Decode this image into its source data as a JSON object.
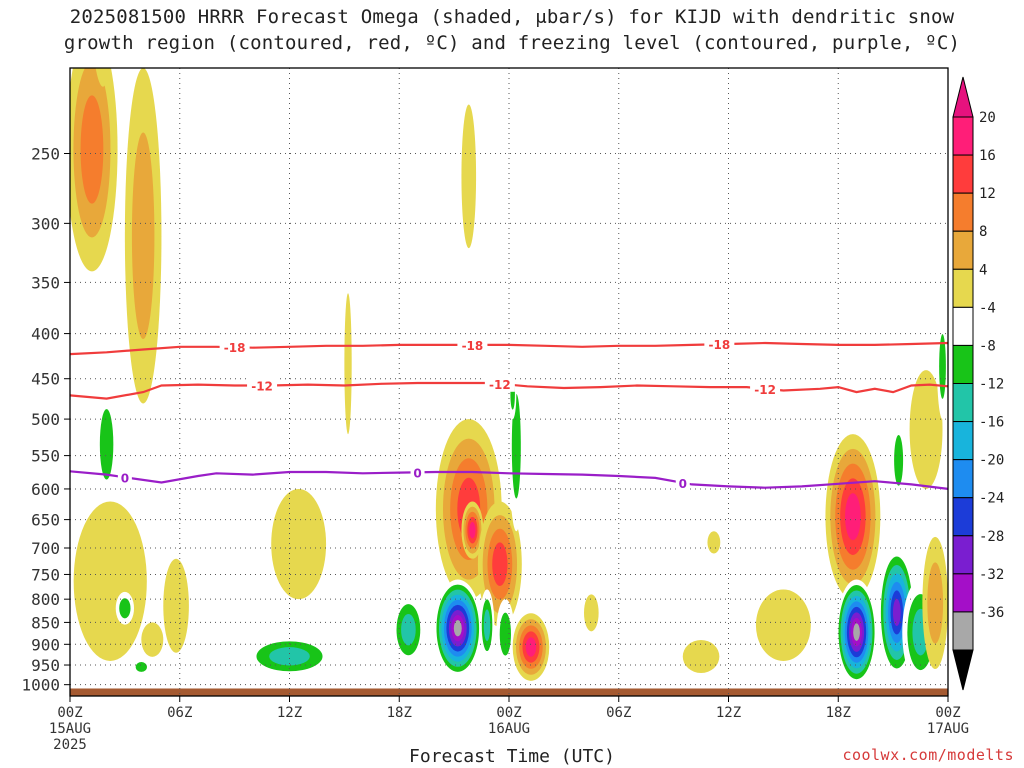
{
  "header": {
    "title_line1": "2025081500 HRRR Forecast Omega (shaded, μbar/s) for KIJD with dendritic snow",
    "title_line2": "growth region (contoured, red, ºC) and freezing level (contoured, purple, ºC)"
  },
  "footer": {
    "xtitle": "Forecast Time (UTC)",
    "credit": "coolwx.com/modelts"
  },
  "chart_data": {
    "type": "heatmap",
    "title": "2025081500 HRRR Forecast Omega (shaded, μbar/s) for KIJD with dendritic snow growth region (contoured, red, ºC) and freezing level (contoured, purple, ºC)",
    "xlabel": "Forecast Time (UTC)",
    "ylabel": "",
    "x_range_hours": [
      0,
      48
    ],
    "y_axis": "pressure (mb), inverted",
    "ylim": [
      1030,
      200
    ],
    "y_ticks": [
      250,
      300,
      350,
      400,
      450,
      500,
      550,
      600,
      650,
      700,
      750,
      800,
      850,
      900,
      950,
      1000
    ],
    "x_ticks": [
      {
        "hour": 0,
        "label": "00Z",
        "sub": "15AUG",
        "sub2": "2025"
      },
      {
        "hour": 6,
        "label": "06Z",
        "sub": "",
        "sub2": ""
      },
      {
        "hour": 12,
        "label": "12Z",
        "sub": "",
        "sub2": ""
      },
      {
        "hour": 18,
        "label": "18Z",
        "sub": "",
        "sub2": ""
      },
      {
        "hour": 24,
        "label": "00Z",
        "sub": "16AUG",
        "sub2": ""
      },
      {
        "hour": 30,
        "label": "06Z",
        "sub": "",
        "sub2": ""
      },
      {
        "hour": 36,
        "label": "12Z",
        "sub": "",
        "sub2": ""
      },
      {
        "hour": 42,
        "label": "18Z",
        "sub": "",
        "sub2": ""
      },
      {
        "hour": 48,
        "label": "00Z",
        "sub": "17AUG",
        "sub2": ""
      }
    ],
    "grid": true,
    "colorbar": {
      "position": "right",
      "levels": [
        {
          "label": "20",
          "color": "#ff1e78"
        },
        {
          "label": "16",
          "color": "#ff3c3c"
        },
        {
          "label": "12",
          "color": "#f57d2d"
        },
        {
          "label": "8",
          "color": "#e8a83a"
        },
        {
          "label": "4",
          "color": "#e6d84e"
        },
        {
          "label": "-4",
          "color": "#ffffff"
        },
        {
          "label": "-8",
          "color": "#18c418"
        },
        {
          "label": "-12",
          "color": "#22c5a8"
        },
        {
          "label": "-16",
          "color": "#18b4dc"
        },
        {
          "label": "-20",
          "color": "#1e8cf0"
        },
        {
          "label": "-24",
          "color": "#1c3cd8"
        },
        {
          "label": "-28",
          "color": "#7a1ed0"
        },
        {
          "label": "-32",
          "color": "#a40fc8"
        },
        {
          "label": "-36",
          "color": "#a8a8a8"
        }
      ],
      "top_arrow_color": "#e6127e",
      "bottom_arrow_color": "#000000"
    },
    "contours": [
      {
        "name": "-18",
        "color": "#f03c3c",
        "label": "-18",
        "points": [
          [
            0,
            422
          ],
          [
            2,
            420
          ],
          [
            4,
            417
          ],
          [
            6,
            414
          ],
          [
            8,
            414
          ],
          [
            10,
            415
          ],
          [
            12,
            414
          ],
          [
            14,
            413
          ],
          [
            16,
            413
          ],
          [
            18,
            412
          ],
          [
            20,
            412
          ],
          [
            22,
            412
          ],
          [
            24,
            412
          ],
          [
            26,
            413
          ],
          [
            28,
            414
          ],
          [
            30,
            413
          ],
          [
            32,
            413
          ],
          [
            34,
            412
          ],
          [
            36,
            411
          ],
          [
            38,
            410
          ],
          [
            40,
            411
          ],
          [
            42,
            412
          ],
          [
            44,
            412
          ],
          [
            46,
            411
          ],
          [
            48,
            410
          ]
        ],
        "label_hours": [
          9,
          22,
          35.5
        ]
      },
      {
        "name": "-12",
        "color": "#f03c3c",
        "label": "-12",
        "points": [
          [
            0,
            470
          ],
          [
            2,
            474
          ],
          [
            4,
            466
          ],
          [
            5,
            458
          ],
          [
            7,
            457
          ],
          [
            9,
            458
          ],
          [
            11,
            458
          ],
          [
            13,
            457
          ],
          [
            15,
            458
          ],
          [
            17,
            456
          ],
          [
            19,
            455
          ],
          [
            21,
            455
          ],
          [
            23,
            455
          ],
          [
            25,
            459
          ],
          [
            27,
            461
          ],
          [
            29,
            460
          ],
          [
            31,
            458
          ],
          [
            33,
            459
          ],
          [
            35,
            460
          ],
          [
            37,
            460
          ],
          [
            39,
            464
          ],
          [
            41,
            462
          ],
          [
            42,
            460
          ],
          [
            43,
            466
          ],
          [
            44,
            462
          ],
          [
            45,
            466
          ],
          [
            46,
            458
          ],
          [
            47,
            457
          ],
          [
            48,
            459
          ]
        ],
        "label_hours": [
          10.5,
          23.5,
          38
        ]
      },
      {
        "name": "0",
        "color": "#9a1ec8",
        "label": "0",
        "points": [
          [
            0,
            573
          ],
          [
            2,
            578
          ],
          [
            3,
            582
          ],
          [
            5,
            590
          ],
          [
            7,
            580
          ],
          [
            8,
            576
          ],
          [
            10,
            578
          ],
          [
            12,
            574
          ],
          [
            14,
            574
          ],
          [
            16,
            576
          ],
          [
            18,
            575
          ],
          [
            20,
            574
          ],
          [
            22,
            574
          ],
          [
            24,
            576
          ],
          [
            26,
            577
          ],
          [
            28,
            578
          ],
          [
            30,
            580
          ],
          [
            32,
            583
          ],
          [
            34,
            593
          ],
          [
            36,
            596
          ],
          [
            38,
            598
          ],
          [
            40,
            596
          ],
          [
            42,
            592
          ],
          [
            44,
            588
          ],
          [
            46,
            593
          ],
          [
            48,
            600
          ]
        ],
        "label_hours": [
          3,
          19,
          33.5
        ]
      }
    ],
    "surface_pressure": 1010,
    "omega_blobs": [
      {
        "t": 1.2,
        "p": 260,
        "rt": 1.4,
        "rp": 80,
        "levels": [
          4,
          8,
          12
        ]
      },
      {
        "t": 1.8,
        "p": 130,
        "rt": 1.1,
        "rp": 80,
        "levels": [
          4,
          8
        ]
      },
      {
        "t": 4.0,
        "p": 340,
        "rt": 1.0,
        "rp": 140,
        "levels": [
          4,
          8
        ]
      },
      {
        "t": 2.0,
        "p": 540,
        "rt": 0.6,
        "rp": 80,
        "levels": [
          -4,
          -8
        ]
      },
      {
        "t": 2.2,
        "p": 780,
        "rt": 2.0,
        "rp": 160,
        "levels": [
          4
        ]
      },
      {
        "t": 3.0,
        "p": 820,
        "rt": 0.5,
        "rp": 35,
        "levels": [
          -4,
          -8
        ]
      },
      {
        "t": 4.5,
        "p": 890,
        "rt": 0.6,
        "rp": 40,
        "levels": [
          4
        ]
      },
      {
        "t": 5.8,
        "p": 820,
        "rt": 0.7,
        "rp": 100,
        "levels": [
          4
        ]
      },
      {
        "t": 3.9,
        "p": 955,
        "rt": 0.5,
        "rp": 20,
        "levels": [
          -4,
          -8
        ]
      },
      {
        "t": 12.5,
        "p": 700,
        "rt": 1.5,
        "rp": 100,
        "levels": [
          4
        ]
      },
      {
        "t": 12.0,
        "p": 930,
        "rt": 2.5,
        "rp": 50,
        "levels": [
          -4,
          -8,
          -12
        ]
      },
      {
        "t": 15.2,
        "p": 440,
        "rt": 0.2,
        "rp": 80,
        "levels": [
          4
        ]
      },
      {
        "t": 21.8,
        "p": 270,
        "rt": 0.4,
        "rp": 50,
        "levels": [
          4
        ]
      },
      {
        "t": 21.8,
        "p": 650,
        "rt": 1.8,
        "rp": 150,
        "levels": [
          4,
          8,
          12,
          16
        ]
      },
      {
        "t": 22.0,
        "p": 670,
        "rt": 0.6,
        "rp": 50,
        "levels": [
          4,
          8,
          12,
          16,
          20
        ]
      },
      {
        "t": 18.5,
        "p": 870,
        "rt": 0.9,
        "rp": 80,
        "levels": [
          -4,
          -8,
          -12
        ]
      },
      {
        "t": 21.2,
        "p": 870,
        "rt": 1.3,
        "rp": 110,
        "levels": [
          -4,
          -8,
          -12,
          -16,
          -20,
          -24,
          -28,
          -32,
          -36
        ]
      },
      {
        "t": 23.5,
        "p": 740,
        "rt": 1.2,
        "rp": 120,
        "levels": [
          4,
          8,
          12,
          16
        ]
      },
      {
        "t": 22.8,
        "p": 860,
        "rt": 0.4,
        "rp": 80,
        "levels": [
          -4,
          -8,
          -12
        ]
      },
      {
        "t": 23.8,
        "p": 880,
        "rt": 0.5,
        "rp": 80,
        "levels": [
          -4,
          -8
        ]
      },
      {
        "t": 24.4,
        "p": 550,
        "rt": 0.4,
        "rp": 120,
        "levels": [
          -4,
          -8
        ]
      },
      {
        "t": 24.2,
        "p": 470,
        "rt": 0.2,
        "rp": 30,
        "levels": [
          -4,
          -8
        ]
      },
      {
        "t": 25.2,
        "p": 910,
        "rt": 1.0,
        "rp": 80,
        "levels": [
          4,
          8,
          12,
          16,
          20
        ]
      },
      {
        "t": 28.5,
        "p": 830,
        "rt": 0.4,
        "rp": 40,
        "levels": [
          4
        ]
      },
      {
        "t": 35.2,
        "p": 690,
        "rt": 0.35,
        "rp": 20,
        "levels": [
          4
        ]
      },
      {
        "t": 34.5,
        "p": 930,
        "rt": 1.0,
        "rp": 40,
        "levels": [
          4
        ]
      },
      {
        "t": 39.0,
        "p": 860,
        "rt": 1.5,
        "rp": 80,
        "levels": [
          4
        ]
      },
      {
        "t": 42.8,
        "p": 660,
        "rt": 1.5,
        "rp": 140,
        "levels": [
          4,
          8,
          12,
          16,
          20
        ]
      },
      {
        "t": 43.0,
        "p": 880,
        "rt": 1.1,
        "rp": 120,
        "levels": [
          -4,
          -8,
          -12,
          -16,
          -20,
          -24,
          -28,
          -32,
          -36
        ]
      },
      {
        "t": 45.2,
        "p": 840,
        "rt": 1.0,
        "rp": 140,
        "levels": [
          -4,
          -8,
          -12,
          -16,
          -20,
          -24,
          -28
        ]
      },
      {
        "t": 46.5,
        "p": 880,
        "rt": 1.0,
        "rp": 120,
        "levels": [
          -4,
          -8,
          -12
        ]
      },
      {
        "t": 46.8,
        "p": 520,
        "rt": 0.9,
        "rp": 80,
        "levels": [
          4
        ]
      },
      {
        "t": 45.3,
        "p": 560,
        "rt": 0.4,
        "rp": 60,
        "levels": [
          -4,
          -8
        ]
      },
      {
        "t": 47.7,
        "p": 440,
        "rt": 0.3,
        "rp": 60,
        "levels": [
          -4,
          -8
        ]
      },
      {
        "t": 47.3,
        "p": 820,
        "rt": 0.7,
        "rp": 140,
        "levels": [
          4,
          8
        ]
      }
    ]
  }
}
